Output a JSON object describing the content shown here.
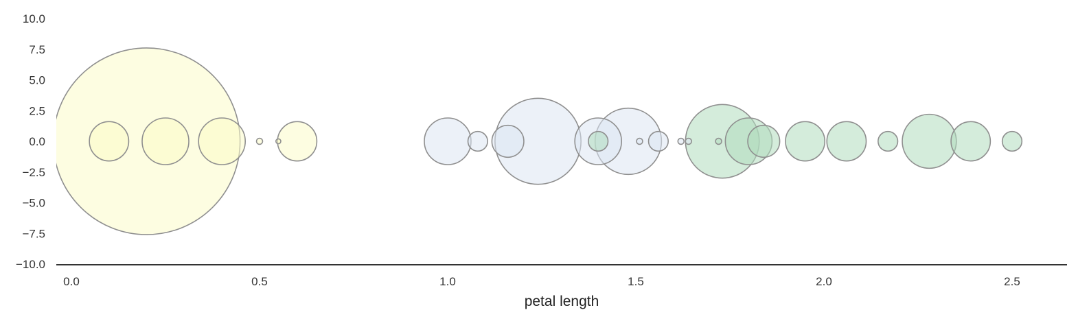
{
  "chart_data": {
    "type": "scatter",
    "xlabel": "petal length",
    "ylabel": "",
    "title": "",
    "xlim": [
      -0.04,
      2.65
    ],
    "ylim": [
      -10,
      10
    ],
    "x_ticks": [
      0.0,
      0.5,
      1.0,
      1.5,
      2.0,
      2.5
    ],
    "x_tick_labels": [
      "0.0",
      "0.5",
      "1.0",
      "1.5",
      "2.0",
      "2.5"
    ],
    "y_ticks": [
      10.0,
      7.5,
      5.0,
      2.5,
      0.0,
      -2.5,
      -5.0,
      -7.5,
      -10.0
    ],
    "y_tick_labels": [
      "10.0",
      "7.5",
      "5.0",
      "2.5",
      "0.0",
      "−2.5",
      "−5.0",
      "−7.5",
      "−10.0"
    ],
    "grid": false,
    "colors": [
      "#fcfcc8",
      "#dde6f3",
      "#b0dcbd"
    ],
    "points": [
      {
        "x": 0.2,
        "y": 0,
        "r": 7.6,
        "c": 0
      },
      {
        "x": 0.1,
        "y": 0,
        "r": 1.6,
        "c": 0
      },
      {
        "x": 0.25,
        "y": 0,
        "r": 1.9,
        "c": 0
      },
      {
        "x": 0.4,
        "y": 0,
        "r": 1.9,
        "c": 0
      },
      {
        "x": 0.5,
        "y": 0,
        "r": 0.25,
        "c": 0
      },
      {
        "x": 0.55,
        "y": 0,
        "r": 0.2,
        "c": 0
      },
      {
        "x": 0.6,
        "y": 0,
        "r": 1.6,
        "c": 0
      },
      {
        "x": 1.0,
        "y": 0,
        "r": 1.9,
        "c": 1
      },
      {
        "x": 1.08,
        "y": 0,
        "r": 0.8,
        "c": 1
      },
      {
        "x": 1.16,
        "y": 0,
        "r": 1.3,
        "c": 1
      },
      {
        "x": 1.24,
        "y": 0,
        "r": 3.5,
        "c": 1
      },
      {
        "x": 1.4,
        "y": 0,
        "r": 1.9,
        "c": 1
      },
      {
        "x": 1.48,
        "y": 0,
        "r": 2.7,
        "c": 1
      },
      {
        "x": 1.51,
        "y": 0,
        "r": 0.25,
        "c": 1
      },
      {
        "x": 1.56,
        "y": 0,
        "r": 0.8,
        "c": 1
      },
      {
        "x": 1.62,
        "y": 0,
        "r": 0.25,
        "c": 1
      },
      {
        "x": 1.64,
        "y": 0,
        "r": 0.25,
        "c": 1
      },
      {
        "x": 1.4,
        "y": 0,
        "r": 0.8,
        "c": 2
      },
      {
        "x": 1.72,
        "y": 0,
        "r": 0.25,
        "c": 2
      },
      {
        "x": 1.73,
        "y": 0,
        "r": 3.0,
        "c": 2
      },
      {
        "x": 1.8,
        "y": 0,
        "r": 1.9,
        "c": 2
      },
      {
        "x": 1.84,
        "y": 0,
        "r": 1.3,
        "c": 2
      },
      {
        "x": 1.95,
        "y": 0,
        "r": 1.6,
        "c": 2
      },
      {
        "x": 2.06,
        "y": 0,
        "r": 1.6,
        "c": 2
      },
      {
        "x": 2.17,
        "y": 0,
        "r": 0.8,
        "c": 2
      },
      {
        "x": 2.28,
        "y": 0,
        "r": 2.2,
        "c": 2
      },
      {
        "x": 2.39,
        "y": 0,
        "r": 1.6,
        "c": 2
      },
      {
        "x": 2.5,
        "y": 0,
        "r": 0.8,
        "c": 2
      }
    ]
  }
}
